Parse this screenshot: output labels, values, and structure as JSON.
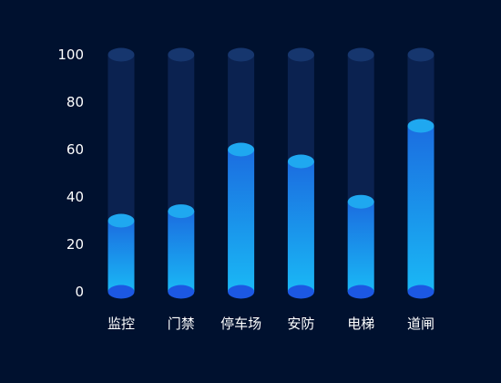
{
  "chart_data": {
    "type": "bar",
    "title": "",
    "xlabel": "",
    "ylabel": "",
    "categories": [
      "监控",
      "门禁",
      "停车场",
      "安防",
      "电梯",
      "道闸"
    ],
    "values": [
      30,
      34,
      60,
      55,
      38,
      70
    ],
    "ylim": [
      0,
      100
    ],
    "yticks": [
      "0",
      "20",
      "40",
      "60",
      "80",
      "100"
    ],
    "grid": false,
    "legend": "none",
    "colors": {
      "background": "#00112f",
      "track": "#0b2250",
      "track_cap": "#16366e",
      "bar_top": "#1b6de0",
      "bar_bottom": "#1ab8f5",
      "bar_cap": "#1fa8f0",
      "base_cap": "#1c58e3",
      "label": "#ffffff"
    }
  }
}
